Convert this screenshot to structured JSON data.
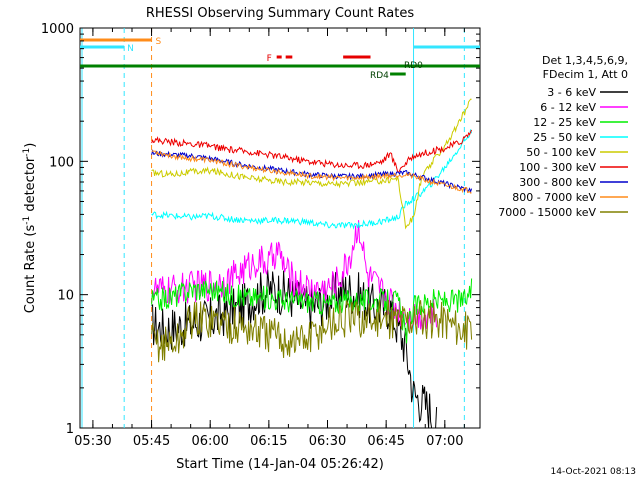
{
  "chart_data": {
    "type": "line",
    "title": "RHESSI Observing Summary Count Rates",
    "xlabel": "Start Time (14-Jan-04 05:26:42)",
    "ylabel_main": "Count Rate (s",
    "ylabel_sup1": "-1",
    "ylabel_mid": " detector",
    "ylabel_sup2": "-1",
    "ylabel_end": ")",
    "y_scale": "log",
    "ylim": [
      1,
      1000
    ],
    "xlim": [
      "05:26:42",
      "07:09:00"
    ],
    "x_ticks": [
      "05:30",
      "05:45",
      "06:00",
      "06:15",
      "06:30",
      "06:45",
      "07:00"
    ],
    "y_ticks": [
      "1",
      "10",
      "100",
      "1000"
    ],
    "legend_header": [
      "Det 1,3,4,5,6,9,",
      "FDecim 1, Att 0"
    ],
    "legend_position": "right",
    "timestamp": "14-Oct-2021 08:13",
    "flags": [
      {
        "label": "S",
        "color": "#ff8c1a",
        "start": "05:26:42",
        "end": "05:45"
      },
      {
        "label": "N",
        "color": "#33e6ff",
        "start": "05:26:42",
        "end": "05:38"
      },
      {
        "label": "N",
        "color": "#33e6ff",
        "start": "06:52",
        "end": "07:09"
      },
      {
        "label": "F",
        "color": "#e60000",
        "start": "06:17",
        "end": "06:21"
      },
      {
        "label": "F",
        "color": "#e60000",
        "start": "06:34",
        "end": "06:41"
      },
      {
        "label": "RD0",
        "color": "#008000",
        "start": "05:26:42",
        "end": "07:09"
      },
      {
        "label": "RD4",
        "color": "#008000",
        "start": "06:46",
        "end": "06:50"
      }
    ],
    "vlines": [
      {
        "time": "05:38",
        "color": "#33e6ff",
        "style": "dashed"
      },
      {
        "time": "05:45",
        "color": "#ff8c1a",
        "style": "dashed"
      },
      {
        "time": "06:52",
        "color": "#33e6ff",
        "style": "solid"
      },
      {
        "time": "07:05",
        "color": "#33e6ff",
        "style": "dashed"
      }
    ],
    "series": [
      {
        "name": "3 - 6 keV",
        "color": "#000000",
        "points": [
          [
            "05:45",
            6
          ],
          [
            "05:48",
            5.5
          ],
          [
            "05:52",
            5.8
          ],
          [
            "06:00",
            6.5
          ],
          [
            "06:08",
            8
          ],
          [
            "06:12",
            10
          ],
          [
            "06:16",
            11
          ],
          [
            "06:20",
            10
          ],
          [
            "06:25",
            8
          ],
          [
            "06:30",
            9
          ],
          [
            "06:34",
            11
          ],
          [
            "06:38",
            10
          ],
          [
            "06:42",
            8
          ],
          [
            "06:46",
            8
          ],
          [
            "06:50",
            4
          ],
          [
            "06:52",
            1.8
          ],
          [
            "06:56",
            1.4
          ],
          [
            "06:58",
            1
          ]
        ]
      },
      {
        "name": "6 - 12 keV",
        "color": "#ff00ff",
        "points": [
          [
            "05:45",
            11
          ],
          [
            "05:48",
            10.5
          ],
          [
            "05:52",
            11
          ],
          [
            "06:00",
            12
          ],
          [
            "06:05",
            13
          ],
          [
            "06:08",
            15
          ],
          [
            "06:12",
            18
          ],
          [
            "06:15",
            17
          ],
          [
            "06:17",
            22
          ],
          [
            "06:20",
            14
          ],
          [
            "06:25",
            11
          ],
          [
            "06:30",
            11
          ],
          [
            "06:33",
            13
          ],
          [
            "06:36",
            20
          ],
          [
            "06:38",
            35
          ],
          [
            "06:40",
            14
          ],
          [
            "06:43",
            11
          ],
          [
            "06:46",
            9
          ],
          [
            "06:50",
            7
          ],
          [
            "06:54",
            7
          ],
          [
            "06:58",
            7
          ]
        ]
      },
      {
        "name": "12 - 25 keV",
        "color": "#00ee00",
        "points": [
          [
            "05:45",
            9
          ],
          [
            "05:50",
            9.5
          ],
          [
            "05:55",
            11
          ],
          [
            "06:00",
            11
          ],
          [
            "06:05",
            10
          ],
          [
            "06:10",
            9.5
          ],
          [
            "06:15",
            9.5
          ],
          [
            "06:20",
            9
          ],
          [
            "06:25",
            9
          ],
          [
            "06:30",
            8.5
          ],
          [
            "06:35",
            9
          ],
          [
            "06:40",
            9
          ],
          [
            "06:45",
            9
          ],
          [
            "06:48",
            9
          ],
          [
            "06:50",
            5
          ],
          [
            "06:52",
            8
          ],
          [
            "06:56",
            9
          ],
          [
            "07:00",
            9
          ],
          [
            "07:05",
            9
          ],
          [
            "07:07",
            11
          ]
        ]
      },
      {
        "name": "25 - 50 keV",
        "color": "#00ffff",
        "points": [
          [
            "05:45",
            40
          ],
          [
            "05:50",
            39
          ],
          [
            "05:55",
            38
          ],
          [
            "06:00",
            39
          ],
          [
            "06:05",
            37
          ],
          [
            "06:10",
            36
          ],
          [
            "06:15",
            36
          ],
          [
            "06:20",
            36
          ],
          [
            "06:25",
            35
          ],
          [
            "06:30",
            33
          ],
          [
            "06:35",
            33
          ],
          [
            "06:40",
            34
          ],
          [
            "06:45",
            36
          ],
          [
            "06:48",
            38
          ],
          [
            "06:50",
            48
          ],
          [
            "06:53",
            55
          ],
          [
            "06:56",
            65
          ],
          [
            "07:00",
            90
          ],
          [
            "07:04",
            130
          ],
          [
            "07:07",
            170
          ]
        ]
      },
      {
        "name": "50 - 100 keV",
        "color": "#cccc00",
        "points": [
          [
            "05:45",
            82
          ],
          [
            "05:50",
            80
          ],
          [
            "05:55",
            83
          ],
          [
            "06:00",
            85
          ],
          [
            "06:05",
            80
          ],
          [
            "06:10",
            75
          ],
          [
            "06:15",
            72
          ],
          [
            "06:20",
            70
          ],
          [
            "06:25",
            70
          ],
          [
            "06:30",
            68
          ],
          [
            "06:35",
            68
          ],
          [
            "06:40",
            70
          ],
          [
            "06:45",
            72
          ],
          [
            "06:48",
            75
          ],
          [
            "06:50",
            32
          ],
          [
            "06:52",
            38
          ],
          [
            "06:54",
            75
          ],
          [
            "06:58",
            110
          ],
          [
            "07:02",
            160
          ],
          [
            "07:07",
            300
          ]
        ]
      },
      {
        "name": "100 - 300 keV",
        "color": "#ee0000",
        "points": [
          [
            "05:45",
            145
          ],
          [
            "05:50",
            140
          ],
          [
            "05:55",
            135
          ],
          [
            "06:00",
            130
          ],
          [
            "06:05",
            122
          ],
          [
            "06:10",
            118
          ],
          [
            "06:15",
            112
          ],
          [
            "06:20",
            106
          ],
          [
            "06:25",
            100
          ],
          [
            "06:30",
            96
          ],
          [
            "06:35",
            93
          ],
          [
            "06:40",
            94
          ],
          [
            "06:44",
            100
          ],
          [
            "06:46",
            115
          ],
          [
            "06:48",
            85
          ],
          [
            "06:52",
            110
          ],
          [
            "06:56",
            118
          ],
          [
            "07:00",
            125
          ],
          [
            "07:04",
            140
          ],
          [
            "07:07",
            170
          ]
        ]
      },
      {
        "name": "300 - 800 keV",
        "color": "#0000cc",
        "points": [
          [
            "05:45",
            115
          ],
          [
            "05:50",
            112
          ],
          [
            "05:55",
            110
          ],
          [
            "06:00",
            105
          ],
          [
            "06:05",
            98
          ],
          [
            "06:10",
            92
          ],
          [
            "06:15",
            88
          ],
          [
            "06:20",
            84
          ],
          [
            "06:25",
            80
          ],
          [
            "06:30",
            78
          ],
          [
            "06:35",
            77
          ],
          [
            "06:40",
            78
          ],
          [
            "06:45",
            80
          ],
          [
            "06:50",
            82
          ],
          [
            "06:55",
            75
          ],
          [
            "07:00",
            68
          ],
          [
            "07:07",
            60
          ]
        ]
      },
      {
        "name": "800 - 7000 keV",
        "color": "#ff8c1a",
        "points": [
          [
            "05:45",
            120
          ],
          [
            "05:50",
            110
          ],
          [
            "05:55",
            105
          ],
          [
            "06:00",
            102
          ],
          [
            "06:05",
            95
          ],
          [
            "06:10",
            90
          ],
          [
            "06:15",
            85
          ],
          [
            "06:20",
            82
          ],
          [
            "06:25",
            78
          ],
          [
            "06:30",
            76
          ],
          [
            "06:35",
            75
          ],
          [
            "06:40",
            76
          ],
          [
            "06:45",
            78
          ],
          [
            "06:50",
            80
          ],
          [
            "06:55",
            72
          ],
          [
            "07:00",
            66
          ],
          [
            "07:07",
            60
          ]
        ]
      },
      {
        "name": "7000 - 15000 keV",
        "color": "#808000",
        "points": [
          [
            "05:45",
            4.5
          ],
          [
            "05:48",
            4.2
          ],
          [
            "05:52",
            4.5
          ],
          [
            "05:55",
            6.5
          ],
          [
            "06:00",
            6.5
          ],
          [
            "06:05",
            6
          ],
          [
            "06:10",
            5.5
          ],
          [
            "06:15",
            5
          ],
          [
            "06:20",
            4.5
          ],
          [
            "06:25",
            4.6
          ],
          [
            "06:30",
            6
          ],
          [
            "06:35",
            6.5
          ],
          [
            "06:40",
            6.5
          ],
          [
            "06:45",
            6.5
          ],
          [
            "06:50",
            6.5
          ],
          [
            "06:55",
            6.5
          ],
          [
            "07:00",
            6.5
          ],
          [
            "07:07",
            5
          ]
        ]
      }
    ]
  }
}
